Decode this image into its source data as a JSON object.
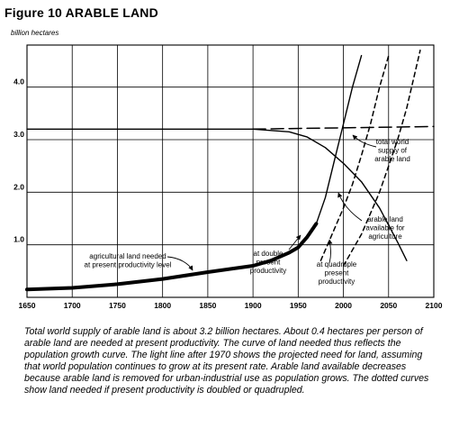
{
  "chart_data": {
    "type": "line",
    "title": "Figure 10 ARABLE LAND",
    "ylabel": "billion hectares",
    "xlabel": "",
    "xlim": [
      1650,
      2100
    ],
    "ylim": [
      0,
      4.8
    ],
    "x_ticks": [
      1650,
      1700,
      1750,
      1800,
      1850,
      1900,
      1950,
      2000,
      2050,
      2100
    ],
    "y_ticks": [
      1.0,
      2.0,
      3.0,
      4.0
    ],
    "grid": true,
    "series": [
      {
        "style": "thick-solid",
        "x": [
          1650,
          1700,
          1750,
          1800,
          1850,
          1900,
          1920,
          1940,
          1950,
          1960,
          1970
        ],
        "y": [
          0.15,
          0.18,
          0.25,
          0.35,
          0.48,
          0.6,
          0.7,
          0.85,
          0.95,
          1.15,
          1.4
        ]
      },
      {
        "style": "thin-solid",
        "x": [
          1970,
          1980,
          1990,
          2000,
          2010,
          2020
        ],
        "y": [
          1.4,
          1.9,
          2.6,
          3.3,
          4.0,
          4.6
        ]
      },
      {
        "style": "dashed",
        "x": [
          1975,
          1990,
          2000,
          2010,
          2020,
          2030,
          2040,
          2050
        ],
        "y": [
          0.7,
          1.3,
          1.7,
          2.15,
          2.7,
          3.3,
          4.0,
          4.6
        ]
      },
      {
        "style": "dashed",
        "x": [
          2000,
          2020,
          2030,
          2040,
          2050,
          2060,
          2070,
          2085
        ],
        "y": [
          0.6,
          1.2,
          1.6,
          2.0,
          2.5,
          3.0,
          3.6,
          4.7
        ]
      },
      {
        "style": "solid",
        "x": [
          1650,
          1900,
          1940,
          1960,
          1980,
          2000,
          2020,
          2040,
          2060,
          2070
        ],
        "y": [
          3.2,
          3.2,
          3.15,
          3.05,
          2.85,
          2.55,
          2.2,
          1.7,
          1.05,
          0.7
        ]
      },
      {
        "style": "long-dashed",
        "x": [
          1900,
          2100
        ],
        "y": [
          3.2,
          3.25
        ]
      }
    ],
    "annotations": [
      {
        "text": [
          "total world",
          "supply of",
          "arable land"
        ]
      },
      {
        "text": [
          "arable land",
          "available for",
          "agriculture"
        ]
      },
      {
        "text": [
          "at quadruple",
          "present",
          "productivity"
        ]
      },
      {
        "text": [
          "at double",
          "present",
          "productivity"
        ]
      },
      {
        "text": [
          "agricultural land needed",
          "at present productivity level"
        ]
      }
    ]
  },
  "caption": "Total world supply of arable land is about 3.2 billion hectares. About 0.4 hectares per person of arable land are needed at present productivity. The curve of land needed thus reflects the population growth curve. The light line after 1970 shows the projected need for land, assuming that world population continues to grow at its present rate. Arable land available decreases because arable land is removed for urban-industrial use as population grows. The dotted curves show land needed if present productivity is doubled or quadrupled."
}
